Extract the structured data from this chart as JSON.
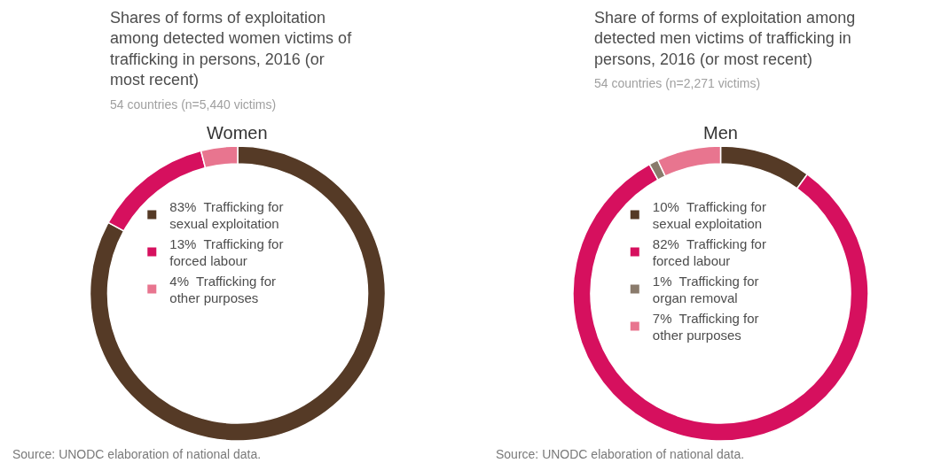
{
  "chart_data": [
    {
      "type": "donut",
      "title": "Shares of forms of exploitation among detected women victims of trafficking in persons, 2016 (or most recent)",
      "subtitle": "54 countries (n=5,440 victims)",
      "categories": [
        "Trafficking for sexual exploitation",
        "Trafficking for forced labour",
        "Trafficking for other purposes"
      ],
      "values": [
        83,
        13,
        4
      ],
      "value_labels": [
        "83%",
        "13%",
        "4%"
      ],
      "colors": [
        "#553a26",
        "#d6105e",
        "#e8758f"
      ],
      "legend": "center",
      "annotations": [
        "Women",
        "Source: UNODC elaboration of national data."
      ]
    },
    {
      "type": "donut",
      "title": "Share of forms of exploitation among detected men victims of trafficking in persons, 2016 (or most recent)",
      "subtitle": "54 countries (n=2,271 victims)",
      "categories": [
        "Trafficking for sexual exploitation",
        "Trafficking for forced labour",
        "Trafficking for organ removal",
        "Trafficking for other purposes"
      ],
      "values": [
        10,
        82,
        1,
        7
      ],
      "value_labels": [
        "10%",
        "82%",
        "1%",
        "7%"
      ],
      "colors": [
        "#553a26",
        "#d6105e",
        "#8a7b6c",
        "#e8758f"
      ],
      "legend": "center",
      "annotations": [
        "Men",
        "Source: UNODC elaboration of national data."
      ]
    }
  ]
}
